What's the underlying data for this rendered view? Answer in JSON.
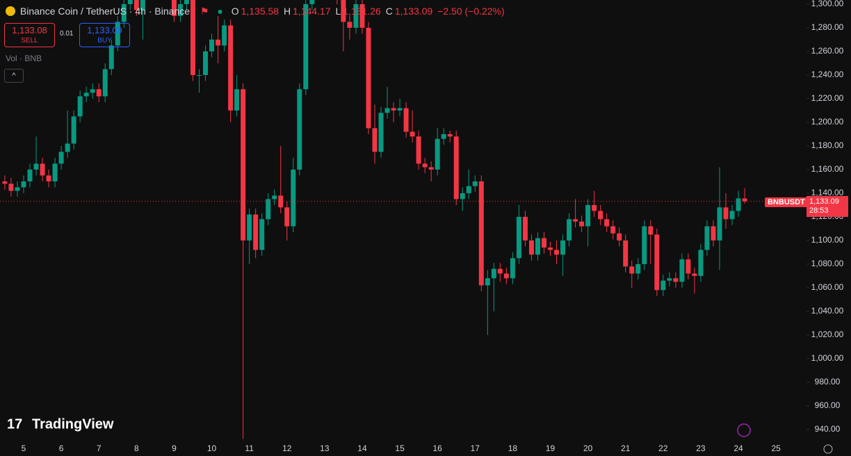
{
  "chart_data": {
    "type": "candlestick",
    "title": "Binance Coin / TetherUS · 4h · Binance",
    "ohlc_header": {
      "o_label": "O",
      "o": "1,135.58",
      "h_label": "H",
      "h": "1,144.17",
      "l_label": "L",
      "l": "1,131.26",
      "c_label": "C",
      "c": "1,133.09",
      "change": "−2.50 (−0.22%)"
    },
    "trade": {
      "sell_price": "1,133.08",
      "sell": "SELL",
      "spread": "0.01",
      "buy_price": "1,133.09",
      "buy": "BUY"
    },
    "volume_label": "Vol · BNB",
    "brand": "TradingView",
    "symbol": "BNBUSDT",
    "last_price": {
      "value": 1133.09,
      "label": "1,133.09"
    },
    "countdown": "28:53",
    "up_color": "#089981",
    "down_color": "#f23645",
    "categories": [
      null,
      null,
      null,
      "5",
      null,
      null,
      null,
      null,
      null,
      "6",
      null,
      null,
      null,
      null,
      null,
      "7",
      null,
      null,
      null,
      null,
      null,
      "8",
      null,
      null,
      null,
      null,
      null,
      "9",
      null,
      null,
      null,
      null,
      null,
      "10",
      null,
      null,
      null,
      null,
      null,
      "11",
      null,
      null,
      null,
      null,
      null,
      "12",
      null,
      null,
      null,
      null,
      null,
      "13",
      null,
      null,
      null,
      null,
      null,
      "14",
      null,
      null,
      null,
      null,
      null,
      "15",
      null,
      null,
      null,
      null,
      null,
      "16",
      null,
      null,
      null,
      null,
      null,
      "17",
      null,
      null,
      null,
      null,
      null,
      "18",
      null,
      null,
      null,
      null,
      null,
      "19",
      null,
      null,
      null,
      null,
      null,
      "20",
      null,
      null,
      null,
      null,
      null,
      "21",
      null,
      null,
      null,
      null,
      null,
      "22",
      null,
      null,
      null,
      null,
      null,
      "23",
      null,
      null,
      null,
      null,
      null,
      "24",
      null,
      null,
      null,
      null,
      null,
      "25"
    ],
    "open": [
      1150,
      1148,
      1142,
      1145,
      1150,
      1160,
      1165,
      1155,
      1150,
      1165,
      1175,
      1182,
      1205,
      1222,
      1225,
      1228,
      1222,
      1245,
      1265,
      1285,
      1300,
      1310,
      1295,
      1310,
      1320,
      1315,
      1310,
      1320,
      1290,
      1300,
      1305,
      1240,
      1240,
      1260,
      1270,
      1265,
      1282,
      1210,
      1228,
      1100,
      1122,
      1092,
      1118,
      1135,
      1138,
      1128,
      1112,
      1160,
      1228,
      1300,
      1320,
      1315,
      1310,
      1318,
      1305,
      1285,
      1280,
      1300,
      1280,
      1195,
      1175,
      1208,
      1212,
      1210,
      1212,
      1192,
      1188,
      1165,
      1162,
      1160,
      1186,
      1190,
      1188,
      1135,
      1140,
      1146,
      1150,
      1062,
      1068,
      1076,
      1072,
      1068,
      1085,
      1120,
      1100,
      1088,
      1102,
      1094,
      1092,
      1088,
      1100,
      1118,
      1116,
      1112,
      1130,
      1125,
      1118,
      1112,
      1106,
      1100,
      1078,
      1072,
      1080,
      1112,
      1105,
      1058,
      1066,
      1068,
      1065,
      1084,
      1072,
      1070,
      1092,
      1112,
      1100,
      1128,
      1118,
      1125,
      1135.58,
      null,
      null,
      null,
      null,
      null
    ],
    "high": [
      1155,
      1153,
      1150,
      1155,
      1165,
      1188,
      1170,
      1160,
      1170,
      1180,
      1210,
      1210,
      1227,
      1230,
      1233,
      1233,
      1250,
      1270,
      1290,
      1305,
      1315,
      1315,
      1315,
      1325,
      1325,
      1320,
      1325,
      1325,
      1305,
      1310,
      1310,
      1245,
      1265,
      1275,
      1290,
      1287,
      1287,
      1240,
      1233,
      1127,
      1127,
      1123,
      1140,
      1143,
      1180,
      1133,
      1170,
      1233,
      1305,
      1325,
      1325,
      1320,
      1323,
      1323,
      1310,
      1290,
      1305,
      1305,
      1285,
      1215,
      1213,
      1230,
      1217,
      1220,
      1217,
      1210,
      1193,
      1170,
      1167,
      1195,
      1195,
      1193,
      1193,
      1145,
      1160,
      1155,
      1155,
      1075,
      1081,
      1081,
      1077,
      1090,
      1130,
      1125,
      1105,
      1107,
      1107,
      1099,
      1100,
      1105,
      1123,
      1135,
      1121,
      1135,
      1142,
      1130,
      1123,
      1117,
      1111,
      1105,
      1083,
      1085,
      1117,
      1117,
      1110,
      1071,
      1073,
      1073,
      1089,
      1089,
      1077,
      1097,
      1117,
      1117,
      1162,
      1140,
      1130,
      1142,
      1144.17,
      null,
      null,
      null,
      null,
      null
    ],
    "low": [
      1143,
      1137,
      1137,
      1140,
      1145,
      1155,
      1150,
      1145,
      1145,
      1160,
      1170,
      1177,
      1200,
      1217,
      1220,
      1217,
      1217,
      1240,
      1260,
      1280,
      1295,
      1290,
      1270,
      1305,
      1310,
      1305,
      1305,
      1285,
      1285,
      1295,
      1235,
      1225,
      1235,
      1255,
      1250,
      1260,
      1200,
      1205,
      932,
      1080,
      1085,
      1087,
      1113,
      1130,
      1123,
      1100,
      1107,
      1155,
      1223,
      1295,
      1310,
      1305,
      1305,
      1300,
      1260,
      1270,
      1275,
      1275,
      1190,
      1165,
      1170,
      1203,
      1200,
      1205,
      1187,
      1183,
      1160,
      1157,
      1150,
      1155,
      1181,
      1183,
      1130,
      1125,
      1135,
      1141,
      1057,
      1020,
      1040,
      1065,
      1063,
      1063,
      1080,
      1095,
      1083,
      1083,
      1089,
      1087,
      1080,
      1070,
      1095,
      1111,
      1107,
      1095,
      1120,
      1113,
      1107,
      1101,
      1095,
      1073,
      1060,
      1067,
      1075,
      1080,
      1053,
      1053,
      1061,
      1060,
      1060,
      1067,
      1055,
      1065,
      1087,
      1095,
      1075,
      1110,
      1113,
      1120,
      1131.26,
      null,
      null,
      null,
      null,
      null
    ],
    "close": [
      1148,
      1142,
      1145,
      1150,
      1160,
      1165,
      1155,
      1150,
      1165,
      1175,
      1182,
      1205,
      1222,
      1225,
      1228,
      1222,
      1245,
      1265,
      1285,
      1300,
      1310,
      1295,
      1310,
      1320,
      1315,
      1310,
      1320,
      1290,
      1300,
      1305,
      1240,
      1240,
      1260,
      1270,
      1265,
      1282,
      1210,
      1228,
      1100,
      1122,
      1092,
      1118,
      1135,
      1138,
      1128,
      1112,
      1160,
      1228,
      1300,
      1320,
      1315,
      1310,
      1318,
      1305,
      1285,
      1280,
      1300,
      1280,
      1195,
      1175,
      1208,
      1212,
      1210,
      1212,
      1192,
      1188,
      1165,
      1162,
      1160,
      1186,
      1190,
      1188,
      1135,
      1140,
      1146,
      1150,
      1062,
      1068,
      1076,
      1072,
      1068,
      1085,
      1120,
      1100,
      1088,
      1102,
      1094,
      1092,
      1088,
      1100,
      1118,
      1116,
      1112,
      1130,
      1125,
      1118,
      1112,
      1106,
      1100,
      1078,
      1072,
      1080,
      1112,
      1105,
      1058,
      1066,
      1068,
      1065,
      1084,
      1072,
      1070,
      1092,
      1112,
      1100,
      1128,
      1118,
      1125,
      1135.58,
      1133.09,
      null,
      null,
      null,
      null,
      null
    ],
    "ylim": [
      927,
      1303.5
    ],
    "yticks": [
      {
        "value": 940,
        "label": "940.00"
      },
      {
        "value": 960,
        "label": "960.00"
      },
      {
        "value": 980,
        "label": "980.00"
      },
      {
        "value": 1000,
        "label": "1,000.00"
      },
      {
        "value": 1020,
        "label": "1,020.00"
      },
      {
        "value": 1040,
        "label": "1,040.00"
      },
      {
        "value": 1060,
        "label": "1,060.00"
      },
      {
        "value": 1080,
        "label": "1,080.00"
      },
      {
        "value": 1100,
        "label": "1,100.00"
      },
      {
        "value": 1120,
        "label": "1,120.00"
      },
      {
        "value": 1140,
        "label": "1,140.00"
      },
      {
        "value": 1160,
        "label": "1,160.00"
      },
      {
        "value": 1180,
        "label": "1,180.00"
      },
      {
        "value": 1200,
        "label": "1,200.00"
      },
      {
        "value": 1220,
        "label": "1,220.00"
      },
      {
        "value": 1240,
        "label": "1,240.00"
      },
      {
        "value": 1260,
        "label": "1,260.00"
      },
      {
        "value": 1280,
        "label": "1,280.00"
      },
      {
        "value": 1300,
        "label": "1,300.00"
      }
    ],
    "grid": false
  }
}
